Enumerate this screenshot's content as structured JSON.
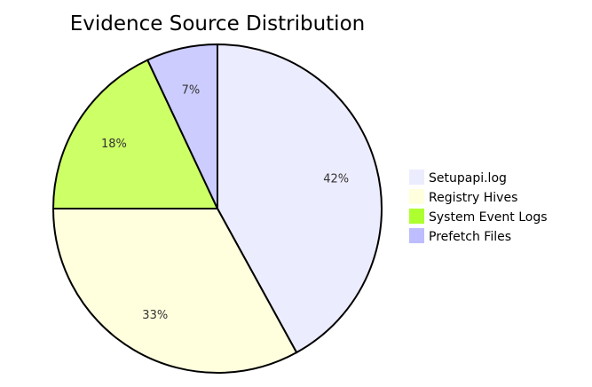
{
  "chart_data": {
    "type": "pie",
    "title": "Evidence Source Distribution",
    "slices": [
      {
        "label": "Setupapi.log",
        "value": 42,
        "value_label": "42%",
        "color": "#ECECFF"
      },
      {
        "label": "Registry Hives",
        "value": 33,
        "value_label": "33%",
        "color": "#FFFFDE"
      },
      {
        "label": "System Event Logs",
        "value": 18,
        "value_label": "18%",
        "color": "#CDFF66"
      },
      {
        "label": "Prefetch Files",
        "value": 7,
        "value_label": "7%",
        "color": "#CCCCFF"
      }
    ],
    "legend_colors": [
      "#ECECFF",
      "#FFFFDE",
      "#ADFF2F",
      "#BDBDFF"
    ],
    "start_angle": "top (12 o'clock)",
    "direction": "clockwise",
    "legend_position": "right",
    "stroke_color": "#000000"
  }
}
